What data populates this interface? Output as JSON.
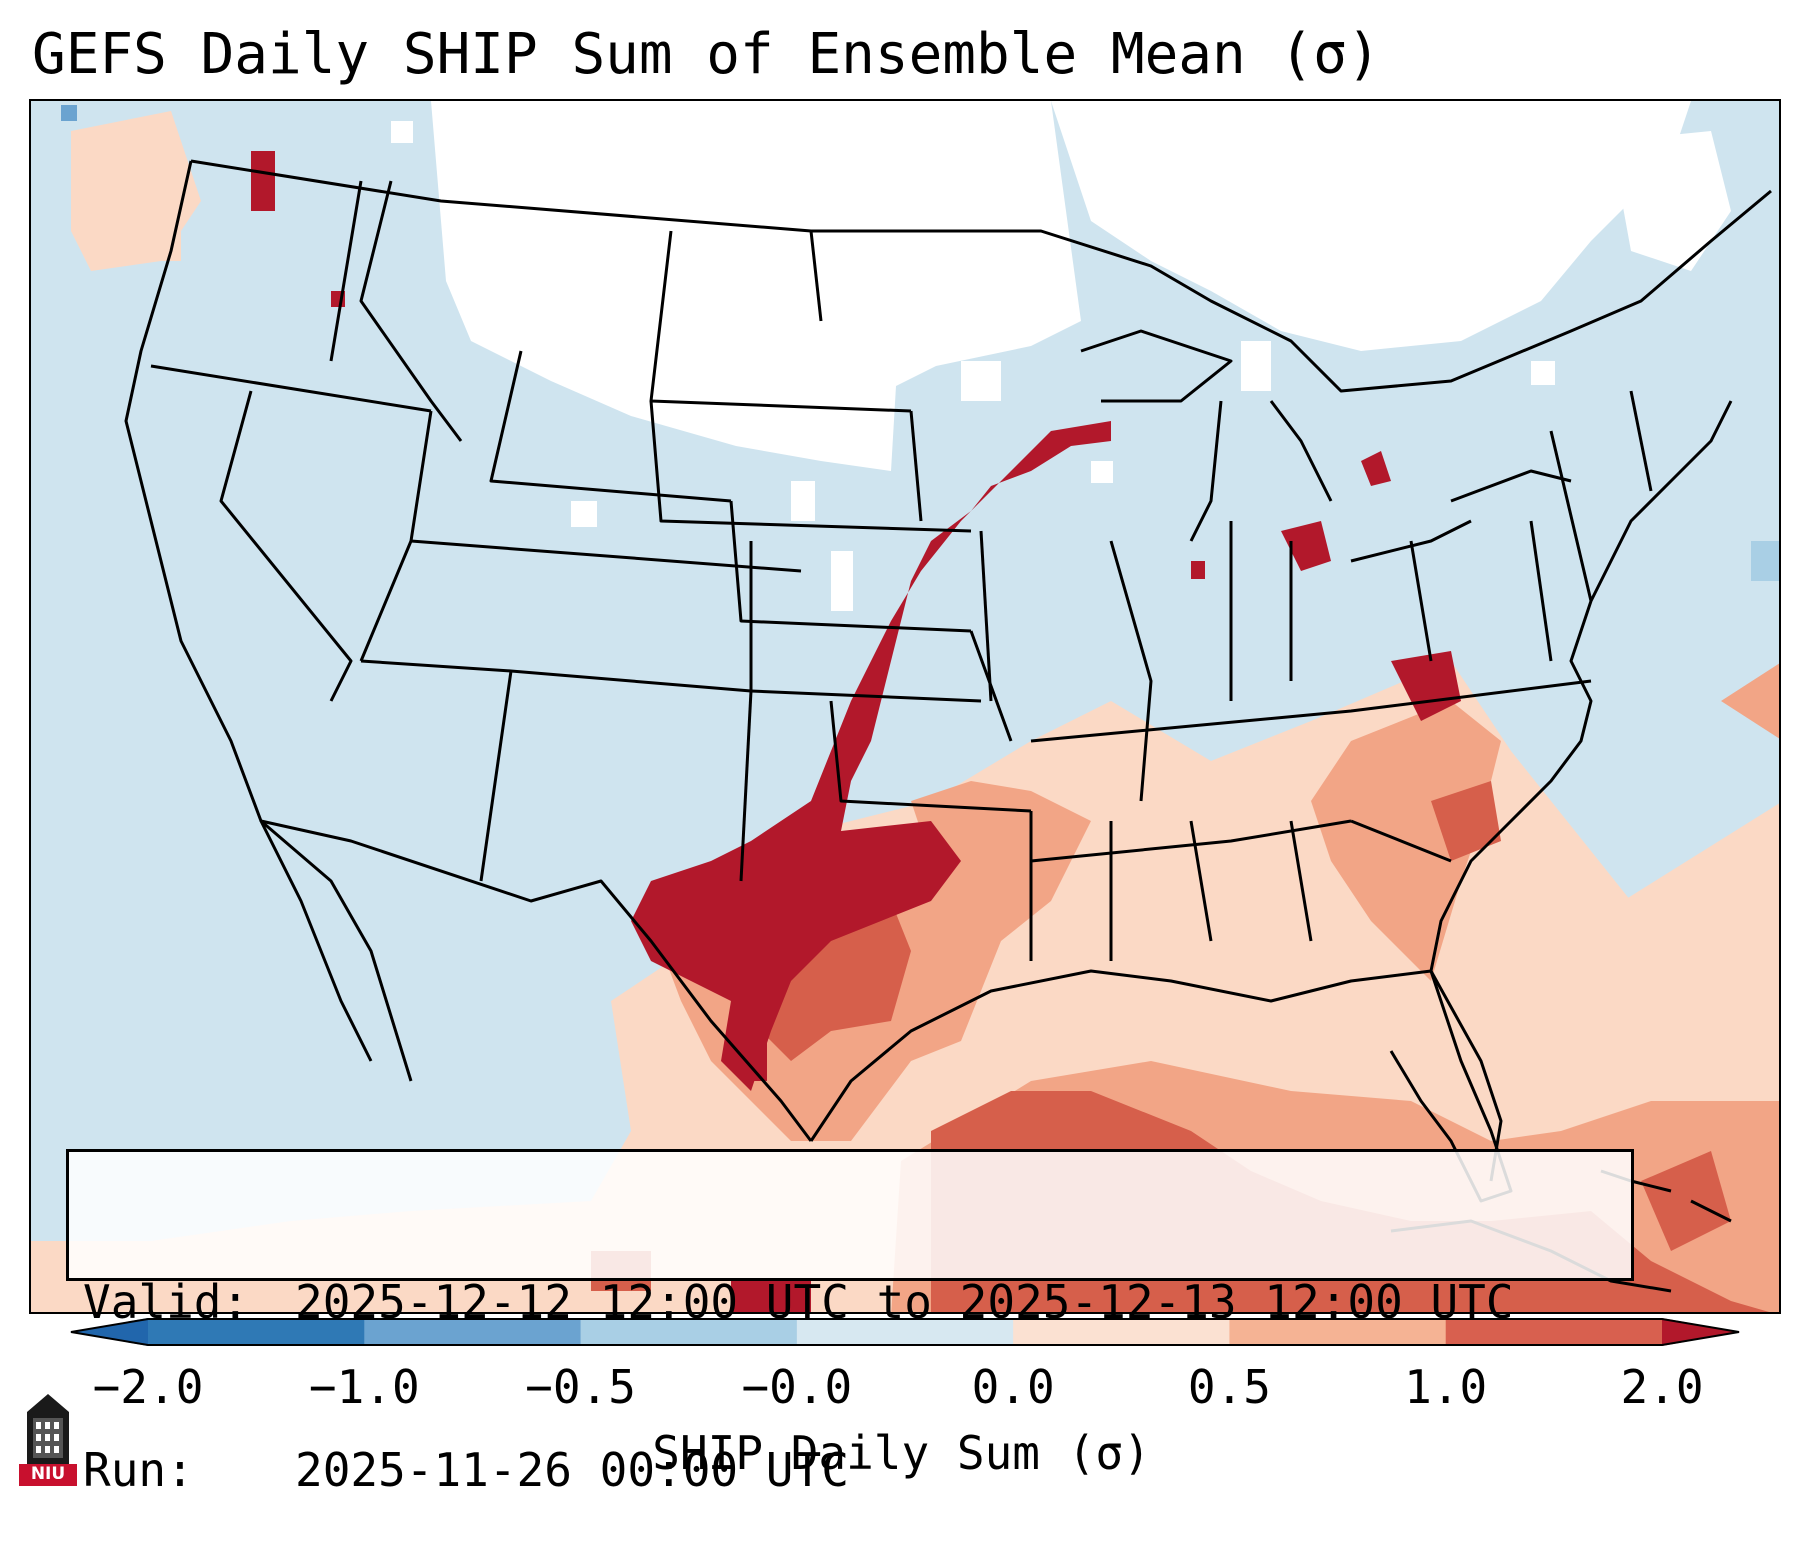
{
  "title": "GEFS Daily SHIP Sum of Ensemble Mean (σ)",
  "valid_label": "Valid:",
  "valid_value": "2025-12-12 12:00 UTC to 2025-12-13 12:00 UTC",
  "run_label": "Run:",
  "run_value": "2025-11-26 00:00 UTC",
  "colorbar": {
    "label": "SHIP Daily Sum (σ)",
    "ticks": [
      "−2.0",
      "−1.0",
      "−0.5",
      "−0.0",
      "0.0",
      "0.5",
      "1.0",
      "2.0"
    ],
    "colors": [
      "#2f79b5",
      "#6ba3d0",
      "#a9cfe5",
      "#d7e8f1",
      "#fbe1d2",
      "#f5b394",
      "#d8604f",
      "#b2182b"
    ],
    "extend_low_color": "#2166ac",
    "extend_high_color": "#b2182b"
  },
  "logo_text": "NIU",
  "palette": {
    "ocean_background": "#cfe4ef",
    "no_data": "#ffffff",
    "light_pink": "#fbd9c5",
    "salmon": "#f2a586",
    "red_orange": "#d65f4b",
    "deep_red": "#b2182b",
    "border_color": "#000000"
  }
}
